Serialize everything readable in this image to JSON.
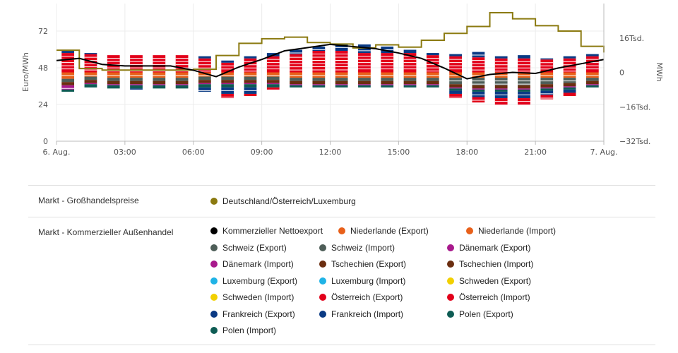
{
  "chart_data": {
    "type": "mixed-line-stacked-bar",
    "x_ticks": [
      "6. Aug.",
      "03:00",
      "06:00",
      "09:00",
      "12:00",
      "15:00",
      "18:00",
      "21:00",
      "7. Aug."
    ],
    "hours": [
      0,
      1,
      2,
      3,
      4,
      5,
      6,
      7,
      8,
      9,
      10,
      11,
      12,
      13,
      14,
      15,
      16,
      17,
      18,
      19,
      20,
      21,
      22,
      23,
      24
    ],
    "left_axis": {
      "title": "Euro/MWh",
      "ticks": [
        0,
        24,
        48,
        72
      ],
      "range": [
        0,
        90
      ]
    },
    "right_axis": {
      "title": "MWh",
      "tick_values": [
        -32000,
        -16000,
        0,
        16000
      ],
      "tick_labels": [
        "−32Tsd.",
        "−16Tsd.",
        "0",
        "16Tsd."
      ],
      "range": [
        -32000,
        32000
      ]
    },
    "price_series": {
      "name": "Deutschland/Österreich/Luxemburg",
      "color": "#8b7a10",
      "values": [
        59.5,
        47.5,
        46.5,
        46.5,
        46.5,
        46.5,
        47,
        56,
        64,
        67,
        68,
        64.5,
        63.5,
        61,
        63,
        61.5,
        66,
        70.5,
        75,
        84,
        80,
        75.5,
        72,
        62,
        58
      ]
    },
    "net_export": {
      "name": "Kommerzieller Nettoexport",
      "color": "#000000",
      "values": [
        5500,
        6500,
        3700,
        3000,
        3000,
        3000,
        1000,
        -2000,
        2500,
        6000,
        10000,
        11500,
        13000,
        12000,
        11000,
        9000,
        6500,
        2000,
        -3000,
        -1000,
        0,
        -500,
        2000,
        4000,
        6000
      ]
    },
    "exchange": {
      "hours": [
        0,
        1,
        2,
        3,
        4,
        5,
        6,
        7,
        8,
        9,
        10,
        11,
        12,
        13,
        14,
        15,
        16,
        17,
        18,
        19,
        20,
        21,
        22,
        23
      ],
      "positive_stack": [
        {
          "name": "Österreich",
          "color": "#e2001a",
          "values": [
            9000,
            8500,
            8000,
            8000,
            8000,
            8000,
            6500,
            4500,
            6500,
            7500,
            8500,
            10000,
            10000,
            9000,
            9000,
            9000,
            8000,
            7500,
            7000,
            6500,
            6500,
            6000,
            6500,
            7500
          ]
        },
        {
          "name": "Frankreich",
          "color": "#0a3a84",
          "values": [
            1000,
            500,
            0,
            0,
            0,
            0,
            1000,
            1000,
            1000,
            1500,
            2000,
            2000,
            3000,
            4000,
            3000,
            1500,
            1000,
            1000,
            2500,
            1000,
            1500,
            500,
            1000,
            1000
          ]
        }
      ],
      "negative_stack": [
        {
          "name": "Niederlande",
          "color": "#e8601a",
          "values": [
            -3000,
            -2000,
            -2500,
            -2500,
            -2500,
            -2500,
            -2000,
            -2000,
            -2000,
            -2000,
            -2500,
            -2500,
            -2500,
            -2500,
            -2500,
            -2500,
            -2500,
            -2500,
            -2500,
            -2500,
            -2500,
            -2500,
            -2500,
            -2500
          ]
        },
        {
          "name": "Schweiz",
          "color": "#4e5e58",
          "values": [
            -1500,
            -1500,
            -1500,
            -1500,
            -1500,
            -1500,
            -1500,
            -1500,
            -1500,
            -1500,
            -1500,
            -1500,
            -1500,
            -1500,
            -1500,
            -1500,
            -1500,
            -3000,
            -3500,
            -3500,
            -3500,
            -3000,
            -2500,
            -1500
          ]
        },
        {
          "name": "Tschechien",
          "color": "#6b2e10",
          "values": [
            -1500,
            -1500,
            -1500,
            -1500,
            -1500,
            -1500,
            -1500,
            -1500,
            -1500,
            -1500,
            -1500,
            -1500,
            -1500,
            -1500,
            -1500,
            -1500,
            -1500,
            -1500,
            -1500,
            -1500,
            -1500,
            -1500,
            -1500,
            -1500
          ]
        },
        {
          "name": "Dänemark",
          "color": "#a8198c",
          "values": [
            -2000,
            -500,
            -500,
            -500,
            -500,
            -500,
            -500,
            -500,
            -500,
            -500,
            -500,
            -500,
            -500,
            -500,
            -500,
            -500,
            -500,
            -500,
            -500,
            -500,
            -500,
            -500,
            -500,
            -500
          ]
        },
        {
          "name": "Polen",
          "color": "#0e5c54",
          "values": [
            -1000,
            -1500,
            -1500,
            -1500,
            -1500,
            -1500,
            -1500,
            -1500,
            -1500,
            -1500,
            -1000,
            -1000,
            -1000,
            -1000,
            -1000,
            -1000,
            -1000,
            -1000,
            -1000,
            -1000,
            -1000,
            -1000,
            -1000,
            -1000
          ]
        },
        {
          "name": "Frankreich",
          "color": "#0a3a84",
          "values": [
            0,
            0,
            0,
            -500,
            0,
            0,
            -2000,
            -3000,
            -3000,
            0,
            0,
            0,
            0,
            0,
            0,
            0,
            0,
            -1500,
            -2500,
            -3000,
            -3000,
            -2000,
            -1500,
            0
          ]
        },
        {
          "name": "Österreich",
          "color": "#e2001a",
          "values": [
            0,
            0,
            0,
            0,
            0,
            0,
            0,
            -2000,
            -1000,
            -1000,
            0,
            0,
            0,
            0,
            0,
            0,
            0,
            -2000,
            -2500,
            -3000,
            -3000,
            -2000,
            -1500,
            0
          ]
        }
      ]
    }
  },
  "legend": {
    "groups": [
      {
        "label": "Markt - Großhandelspreise",
        "items": [
          {
            "label": "Deutschland/Österreich/Luxemburg",
            "color": "#8b7a10"
          }
        ]
      },
      {
        "label": "Markt - Kommerzieller Außenhandel",
        "items": [
          {
            "label": "Kommerzieller Nettoexport",
            "color": "#000000"
          },
          {
            "label": "Niederlande (Export)",
            "color": "#e8601a"
          },
          {
            "label": "Niederlande (Import)",
            "color": "#e8601a"
          },
          {
            "label": "Schweiz (Export)",
            "color": "#4e5e58"
          },
          {
            "label": "Schweiz (Import)",
            "color": "#4e5e58"
          },
          {
            "label": "Dänemark (Export)",
            "color": "#a8198c"
          },
          {
            "label": "Dänemark (Import)",
            "color": "#a8198c"
          },
          {
            "label": "Tschechien (Export)",
            "color": "#6b2e10"
          },
          {
            "label": "Tschechien (Import)",
            "color": "#6b2e10"
          },
          {
            "label": "Luxemburg (Export)",
            "color": "#1fb3e6"
          },
          {
            "label": "Luxemburg (Import)",
            "color": "#1fb3e6"
          },
          {
            "label": "Schweden (Export)",
            "color": "#f2d000"
          },
          {
            "label": "Schweden (Import)",
            "color": "#f2d000"
          },
          {
            "label": "Österreich (Export)",
            "color": "#e2001a"
          },
          {
            "label": "Österreich (Import)",
            "color": "#e2001a"
          },
          {
            "label": "Frankreich (Export)",
            "color": "#0a3a84"
          },
          {
            "label": "Frankreich (Import)",
            "color": "#0a3a84"
          },
          {
            "label": "Polen (Export)",
            "color": "#0e5c54"
          },
          {
            "label": "Polen (Import)",
            "color": "#0e5c54"
          }
        ]
      }
    ]
  }
}
